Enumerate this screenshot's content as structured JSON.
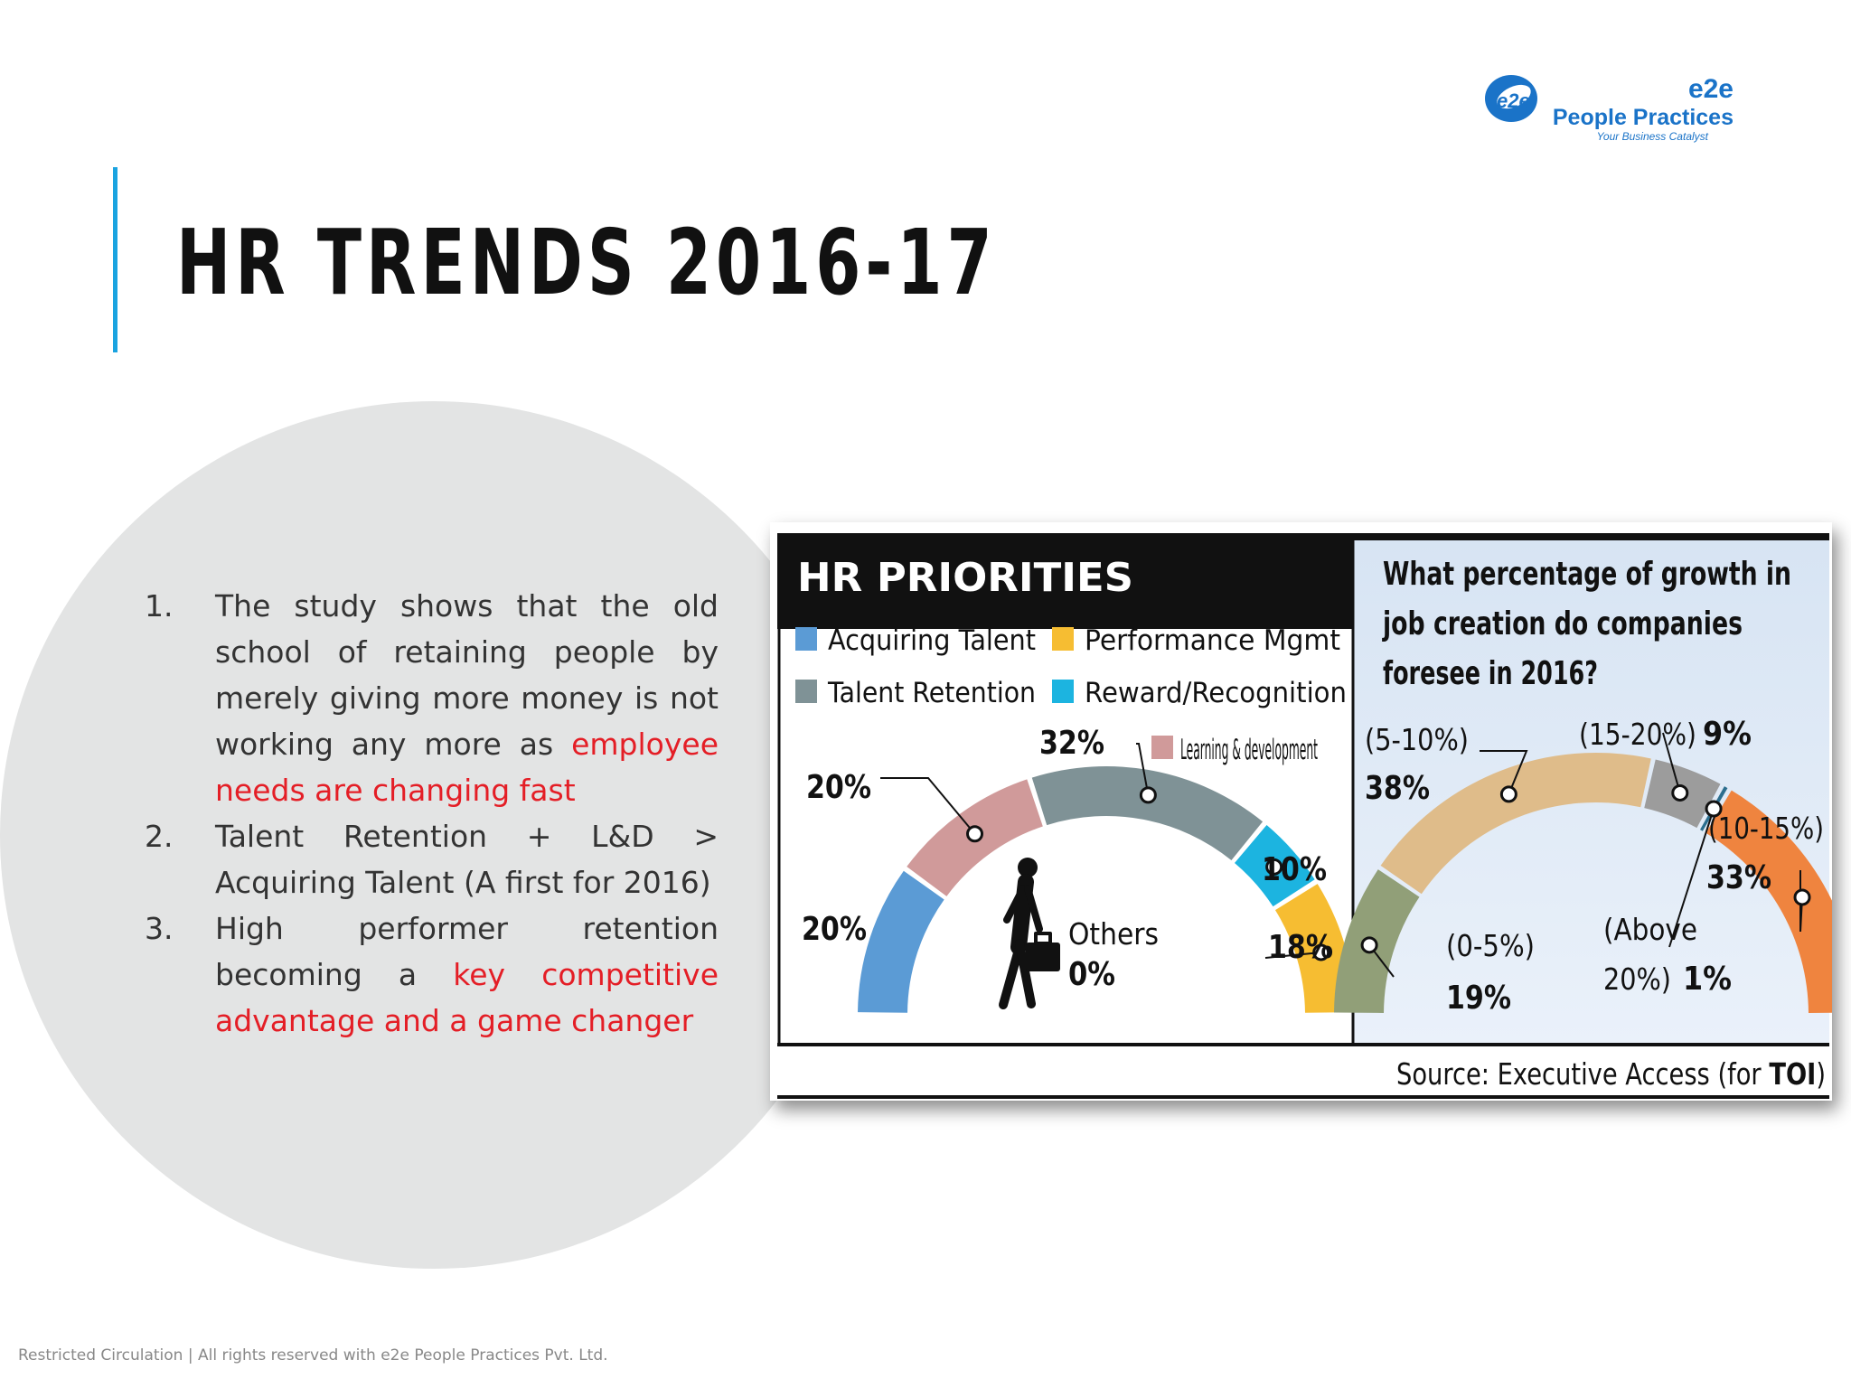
{
  "slide": {
    "title": "HR TRENDS 2016-17",
    "footer": "Restricted Circulation | All rights reserved with e2e People Practices Pvt. Ltd.",
    "accent_color": "#1aa3e0"
  },
  "logo": {
    "mark_text": "e2e",
    "brand": "e2e",
    "name": "People Practices",
    "tagline": "Your Business Catalyst"
  },
  "bullets": [
    {
      "num": "1.",
      "text": "The study shows that the old school of retaining people by merely giving more money is not working any more as ",
      "highlight": "employee needs are changing fast",
      "after": ""
    },
    {
      "num": "2.",
      "text": "Talent Retention + L&D > Acquiring Talent (A first for 2016)",
      "highlight": "",
      "after": ""
    },
    {
      "num": "3.",
      "text": "High performer retention becoming a ",
      "highlight": "key competitive advantage and a game changer",
      "after": ""
    }
  ],
  "infographic": {
    "source_prefix": "Source: Executive Access (for ",
    "source_bold": "TOI",
    "source_suffix": ")"
  },
  "chart_data": [
    {
      "type": "pie",
      "subtype": "half-donut",
      "title": "HR PRIORITIES",
      "legend": [
        {
          "label": "Acquiring Talent",
          "color": "#5b9bd5"
        },
        {
          "label": "Performance Mgmt",
          "color": "#f6bd32"
        },
        {
          "label": "Talent Retention",
          "color": "#7f9296"
        },
        {
          "label": "Reward/Recognition",
          "color": "#1cb4e0"
        },
        {
          "label": "Learning & development",
          "color": "#d09a9a"
        }
      ],
      "slices": [
        {
          "label": "Acquiring Talent",
          "value": 20,
          "display": "20%",
          "color": "#5b9bd5"
        },
        {
          "label": "Learning & development",
          "value": 20,
          "display": "20%",
          "color": "#d09a9a"
        },
        {
          "label": "Talent Retention",
          "value": 32,
          "display": "32%",
          "color": "#7f9296"
        },
        {
          "label": "Reward/Recognition",
          "value": 10,
          "display": "10%",
          "color": "#1cb4e0"
        },
        {
          "label": "Performance Mgmt",
          "value": 18,
          "display": "18%",
          "color": "#f6bd32"
        }
      ],
      "others": {
        "label": "Others",
        "value": 0,
        "display": "0%"
      }
    },
    {
      "type": "pie",
      "subtype": "half-donut",
      "title": "What percentage of growth in job creation do companies foresee in 2016?",
      "title_lines": [
        "What percentage of growth in",
        "job creation do companies",
        "foresee in 2016?"
      ],
      "slices": [
        {
          "label": "(0-5%)",
          "value": 19,
          "display": "19%",
          "color": "#919f78"
        },
        {
          "label": "(5-10%)",
          "value": 38,
          "display": "38%",
          "color": "#dfbc8a"
        },
        {
          "label": "(15-20%)",
          "value": 9,
          "display": "9%",
          "color": "#9c9c9c"
        },
        {
          "label": "(Above 20%)",
          "label_lines": [
            "(Above",
            "20%)"
          ],
          "value": 1,
          "display": "1%",
          "color": "#2c6e8e"
        },
        {
          "label": "(10-15%)",
          "value": 33,
          "display": "33%",
          "color": "#ef843f"
        }
      ]
    }
  ]
}
